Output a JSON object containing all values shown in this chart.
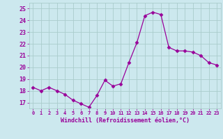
{
  "x": [
    0,
    1,
    2,
    3,
    4,
    5,
    6,
    7,
    8,
    9,
    10,
    11,
    12,
    13,
    14,
    15,
    16,
    17,
    18,
    19,
    20,
    21,
    22,
    23
  ],
  "y": [
    18.3,
    18.0,
    18.3,
    18.0,
    17.7,
    17.2,
    16.9,
    16.6,
    17.6,
    18.9,
    18.4,
    18.6,
    20.4,
    22.1,
    24.4,
    24.7,
    24.5,
    21.7,
    21.4,
    21.4,
    21.3,
    21.0,
    20.4,
    20.2
  ],
  "line_color": "#990099",
  "marker": "D",
  "marker_size": 2.5,
  "bg_color": "#cce8ee",
  "grid_color": "#aacccc",
  "xlabel": "Windchill (Refroidissement éolien,°C)",
  "xlabel_color": "#990099",
  "tick_color": "#990099",
  "label_color": "#990099",
  "ylim": [
    16.5,
    25.5
  ],
  "xlim": [
    -0.5,
    23.5
  ],
  "yticks": [
    17,
    18,
    19,
    20,
    21,
    22,
    23,
    24,
    25
  ],
  "xticks": [
    0,
    1,
    2,
    3,
    4,
    5,
    6,
    7,
    8,
    9,
    10,
    11,
    12,
    13,
    14,
    15,
    16,
    17,
    18,
    19,
    20,
    21,
    22,
    23
  ],
  "xtick_labels": [
    "0",
    "1",
    "2",
    "3",
    "4",
    "5",
    "6",
    "7",
    "8",
    "9",
    "10",
    "11",
    "12",
    "13",
    "14",
    "15",
    "16",
    "17",
    "18",
    "19",
    "20",
    "21",
    "22",
    "23"
  ]
}
